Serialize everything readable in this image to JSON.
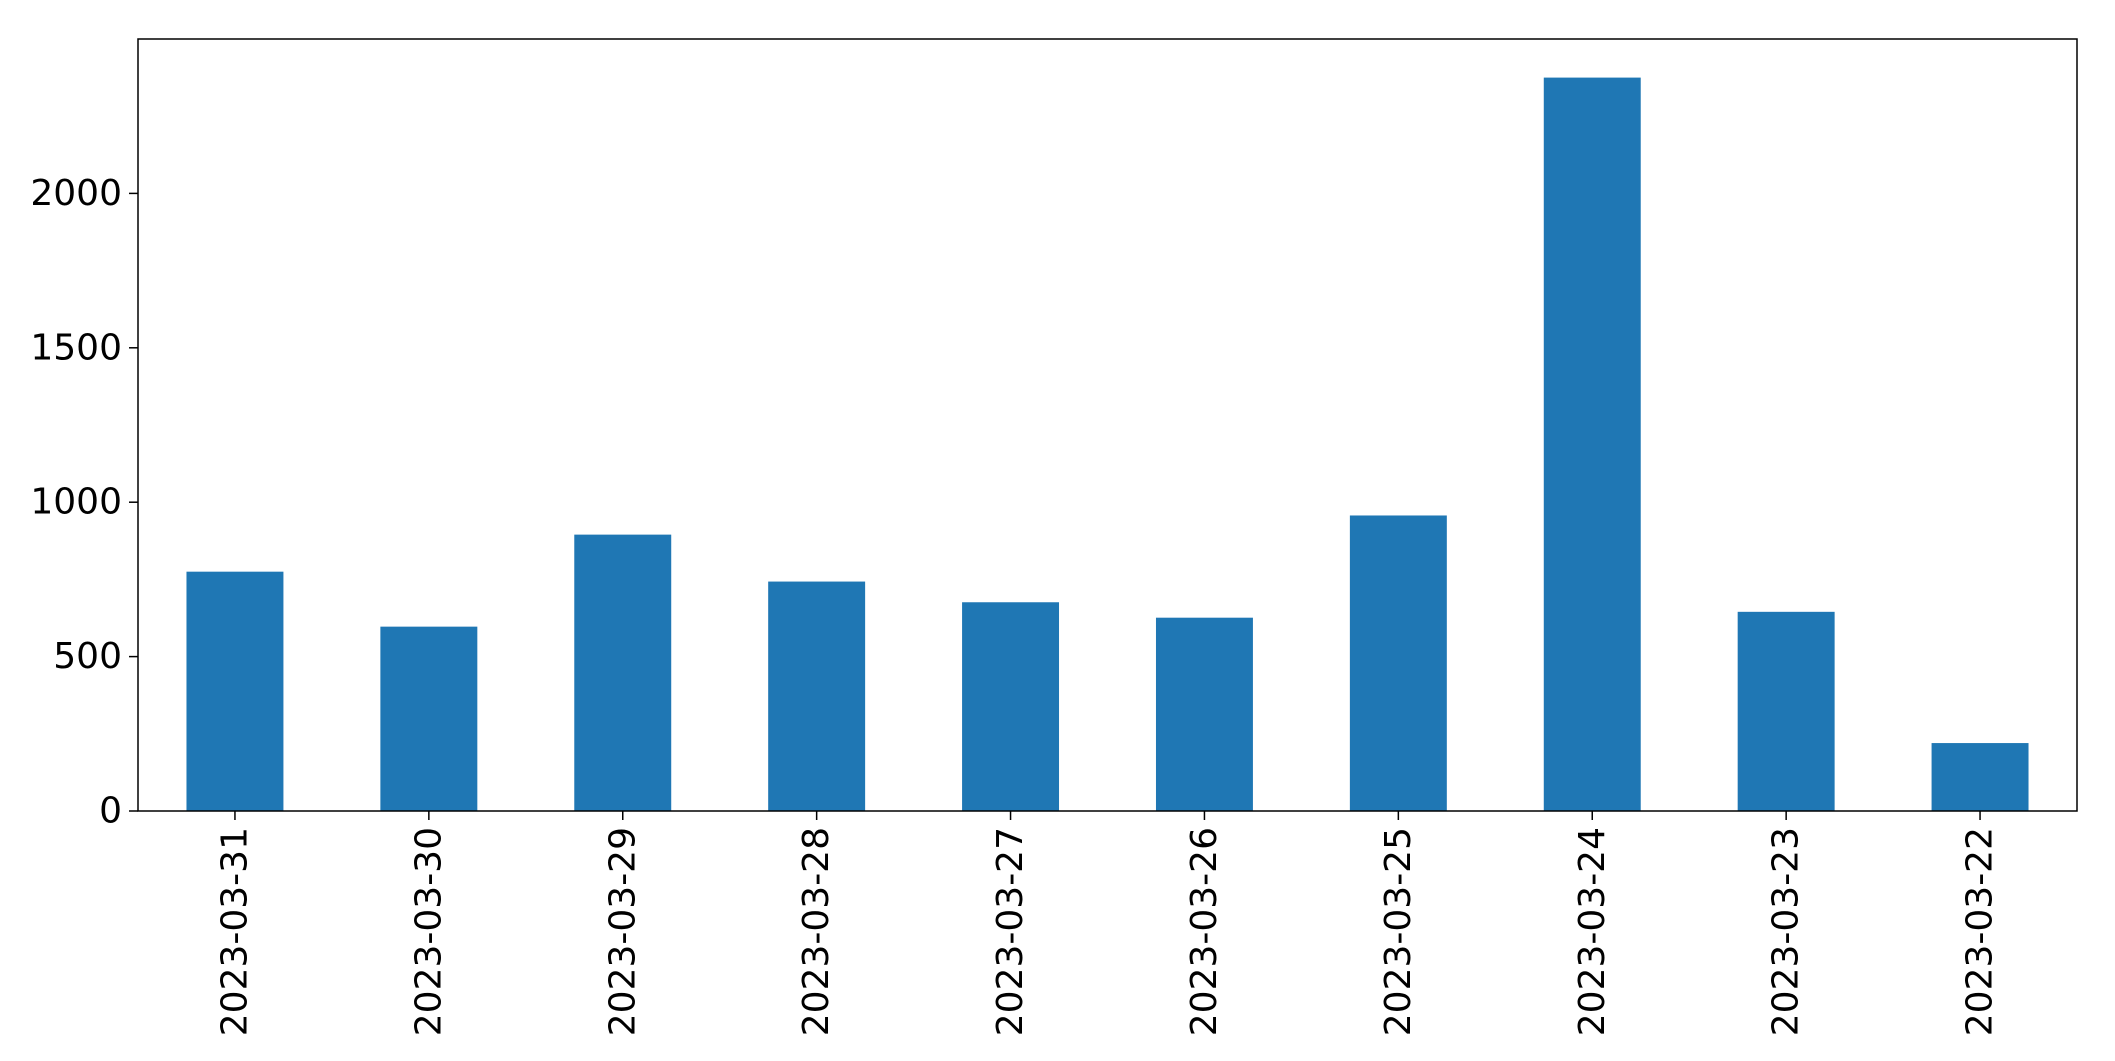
{
  "chart_data": {
    "type": "bar",
    "title": "",
    "xlabel": "",
    "ylabel": "",
    "categories": [
      "2023-03-31",
      "2023-03-30",
      "2023-03-29",
      "2023-03-28",
      "2023-03-27",
      "2023-03-26",
      "2023-03-25",
      "2023-03-24",
      "2023-03-23",
      "2023-03-22"
    ],
    "values": [
      775,
      597,
      895,
      743,
      676,
      626,
      957,
      2375,
      645,
      220
    ],
    "ylim": [
      0,
      2500
    ],
    "yticks": [
      0,
      500,
      1000,
      1500,
      2000
    ],
    "yticklabels": [
      "0",
      "500",
      "1000",
      "1500",
      "2000"
    ],
    "grid": false,
    "legend": "none",
    "bar_color": "#1f77b4",
    "axis_color": "#000000",
    "background": "#ffffff"
  }
}
